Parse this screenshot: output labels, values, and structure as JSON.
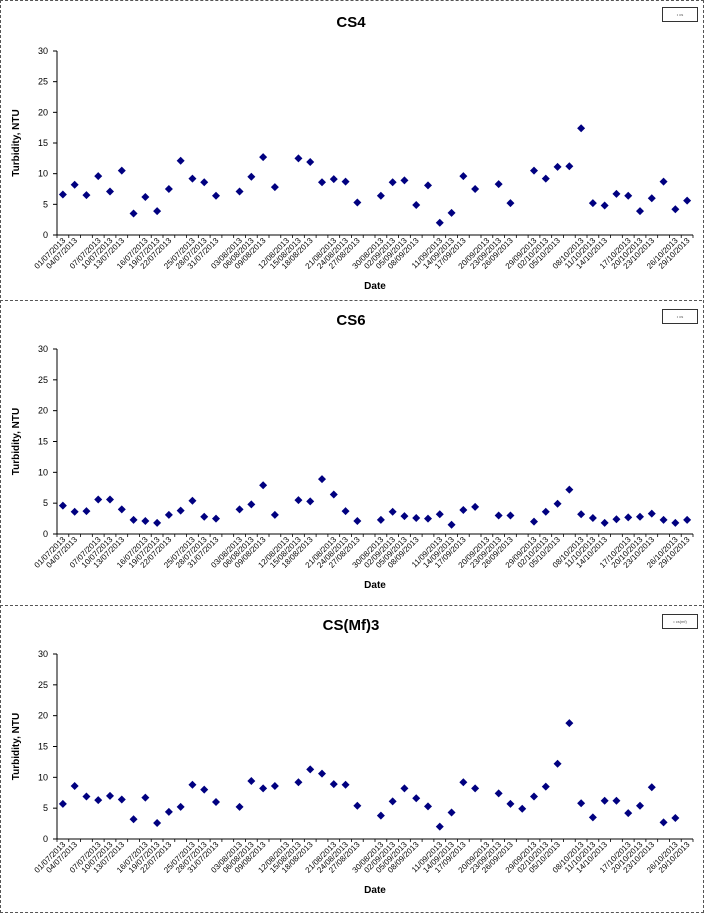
{
  "chart_data": [
    {
      "type": "scatter",
      "title": "CS4",
      "xlabel": "Date",
      "ylabel": "Turbidity, NTU",
      "ylim": [
        0,
        30
      ],
      "yticks": [
        0,
        5,
        10,
        15,
        20,
        25,
        30
      ],
      "grid": false,
      "legend": "top-right",
      "legend_text": "• cs",
      "marker_color": "#000080",
      "categories": [
        "01/07/2013",
        "04/07/2013",
        "07/07/2013",
        "10/07/2013",
        "13/07/2013",
        "16/07/2013",
        "19/07/2013",
        "22/07/2013",
        "25/07/2013",
        "28/07/2013",
        "31/07/2013",
        "03/08/2013",
        "06/08/2013",
        "09/08/2013",
        "12/08/2013",
        "15/08/2013",
        "18/08/2013",
        "21/08/2013",
        "24/08/2013",
        "27/08/2013",
        "30/08/2013",
        "02/09/2013",
        "05/09/2013",
        "08/09/2013",
        "11/09/2013",
        "14/09/2013",
        "17/09/2013",
        "20/09/2013",
        "23/09/2013",
        "26/09/2013",
        "29/09/2013",
        "02/10/2013",
        "05/10/2013",
        "08/10/2013",
        "11/10/2013",
        "14/10/2013",
        "17/10/2013",
        "20/10/2013",
        "23/10/2013",
        "26/10/2013",
        "29/10/2013"
      ],
      "points": [
        [
          0,
          6.6
        ],
        [
          1,
          8.2
        ],
        [
          2,
          6.5
        ],
        [
          3,
          9.6
        ],
        [
          4,
          7.1
        ],
        [
          5,
          10.5
        ],
        [
          6,
          3.5
        ],
        [
          7,
          6.2
        ],
        [
          8,
          3.9
        ],
        [
          9,
          7.5
        ],
        [
          10,
          12.1
        ],
        [
          11,
          9.2
        ],
        [
          12,
          8.6
        ],
        [
          13,
          6.4
        ],
        [
          15,
          7.1
        ],
        [
          16,
          9.5
        ],
        [
          17,
          12.7
        ],
        [
          18,
          7.8
        ],
        [
          20,
          12.5
        ],
        [
          21,
          11.9
        ],
        [
          22,
          8.6
        ],
        [
          23,
          9.1
        ],
        [
          24,
          8.7
        ],
        [
          25,
          5.3
        ],
        [
          27,
          6.4
        ],
        [
          28,
          8.6
        ],
        [
          29,
          8.9
        ],
        [
          30,
          4.9
        ],
        [
          31,
          8.1
        ],
        [
          32,
          2.0
        ],
        [
          33,
          3.6
        ],
        [
          34,
          9.6
        ],
        [
          35,
          7.5
        ],
        [
          37,
          8.3
        ],
        [
          38,
          5.2
        ],
        [
          40,
          10.5
        ],
        [
          41,
          9.2
        ],
        [
          42,
          11.1
        ],
        [
          43,
          11.2
        ],
        [
          44,
          17.4
        ],
        [
          45,
          5.2
        ],
        [
          46,
          4.8
        ],
        [
          47,
          6.7
        ],
        [
          48,
          6.4
        ],
        [
          49,
          3.9
        ],
        [
          50,
          6.0
        ],
        [
          51,
          8.7
        ],
        [
          52,
          4.2
        ],
        [
          53,
          5.6
        ]
      ]
    },
    {
      "type": "scatter",
      "title": "CS6",
      "xlabel": "Date",
      "ylabel": "Turbidity, NTU",
      "ylim": [
        0,
        30
      ],
      "yticks": [
        0,
        5,
        10,
        15,
        20,
        25,
        30
      ],
      "grid": false,
      "legend": "top-right",
      "legend_text": "• cs",
      "marker_color": "#000080",
      "categories": [
        "01/07/2013",
        "04/07/2013",
        "07/07/2013",
        "10/07/2013",
        "13/07/2013",
        "16/07/2013",
        "19/07/2013",
        "22/07/2013",
        "25/07/2013",
        "28/07/2013",
        "31/07/2013",
        "03/08/2013",
        "06/08/2013",
        "09/08/2013",
        "12/08/2013",
        "15/08/2013",
        "18/08/2013",
        "21/08/2013",
        "24/08/2013",
        "27/08/2013",
        "30/08/2013",
        "02/09/2013",
        "05/09/2013",
        "08/09/2013",
        "11/09/2013",
        "14/09/2013",
        "17/09/2013",
        "20/09/2013",
        "23/09/2013",
        "26/09/2013",
        "29/09/2013",
        "02/10/2013",
        "05/10/2013",
        "08/10/2013",
        "11/10/2013",
        "14/10/2013",
        "17/10/2013",
        "20/10/2013",
        "23/10/2013",
        "26/10/2013",
        "29/10/2013"
      ],
      "points": [
        [
          0,
          4.6
        ],
        [
          1,
          3.6
        ],
        [
          2,
          3.7
        ],
        [
          3,
          5.6
        ],
        [
          4,
          5.6
        ],
        [
          5,
          4.0
        ],
        [
          6,
          2.3
        ],
        [
          7,
          2.1
        ],
        [
          8,
          1.8
        ],
        [
          9,
          3.1
        ],
        [
          10,
          3.8
        ],
        [
          11,
          5.4
        ],
        [
          12,
          2.8
        ],
        [
          13,
          2.5
        ],
        [
          15,
          4.0
        ],
        [
          16,
          4.8
        ],
        [
          17,
          7.9
        ],
        [
          18,
          3.1
        ],
        [
          20,
          5.5
        ],
        [
          21,
          5.3
        ],
        [
          22,
          8.9
        ],
        [
          23,
          6.4
        ],
        [
          24,
          3.7
        ],
        [
          25,
          2.1
        ],
        [
          27,
          2.3
        ],
        [
          28,
          3.6
        ],
        [
          29,
          2.9
        ],
        [
          30,
          2.6
        ],
        [
          31,
          2.5
        ],
        [
          32,
          3.2
        ],
        [
          33,
          1.5
        ],
        [
          34,
          3.9
        ],
        [
          35,
          4.4
        ],
        [
          37,
          3.0
        ],
        [
          38,
          3.0
        ],
        [
          40,
          2.0
        ],
        [
          41,
          3.6
        ],
        [
          42,
          4.9
        ],
        [
          43,
          7.2
        ],
        [
          44,
          3.2
        ],
        [
          45,
          2.6
        ],
        [
          46,
          1.8
        ],
        [
          47,
          2.4
        ],
        [
          48,
          2.7
        ],
        [
          49,
          2.8
        ],
        [
          50,
          3.3
        ],
        [
          51,
          2.3
        ],
        [
          52,
          1.8
        ],
        [
          53,
          2.3
        ]
      ]
    },
    {
      "type": "scatter",
      "title": "CS(Mf)3",
      "xlabel": "Date",
      "ylabel": "Turbidity, NTU",
      "ylim": [
        0,
        30
      ],
      "yticks": [
        0,
        5,
        10,
        15,
        20,
        25,
        30
      ],
      "grid": false,
      "legend": "top-right",
      "legend_text": "• cs(mf)",
      "marker_color": "#000080",
      "categories": [
        "01/07/2013",
        "04/07/2013",
        "07/07/2013",
        "10/07/2013",
        "13/07/2013",
        "16/07/2013",
        "19/07/2013",
        "22/07/2013",
        "25/07/2013",
        "28/07/2013",
        "31/07/2013",
        "03/08/2013",
        "06/08/2013",
        "09/08/2013",
        "12/08/2013",
        "15/08/2013",
        "18/08/2013",
        "21/08/2013",
        "24/08/2013",
        "27/08/2013",
        "30/08/2013",
        "02/09/2013",
        "05/09/2013",
        "08/09/2013",
        "11/09/2013",
        "14/09/2013",
        "17/09/2013",
        "20/09/2013",
        "23/09/2013",
        "26/09/2013",
        "29/09/2013",
        "02/10/2013",
        "05/10/2013",
        "08/10/2013",
        "11/10/2013",
        "14/10/2013",
        "17/10/2013",
        "20/10/2013",
        "23/10/2013",
        "26/10/2013",
        "29/10/2013"
      ],
      "points": [
        [
          0,
          5.7
        ],
        [
          1,
          8.6
        ],
        [
          2,
          6.9
        ],
        [
          3,
          6.3
        ],
        [
          4,
          7.0
        ],
        [
          5,
          6.4
        ],
        [
          6,
          3.2
        ],
        [
          7,
          6.7
        ],
        [
          8,
          2.6
        ],
        [
          9,
          4.4
        ],
        [
          10,
          5.2
        ],
        [
          11,
          8.8
        ],
        [
          12,
          8.0
        ],
        [
          13,
          6.0
        ],
        [
          15,
          5.2
        ],
        [
          16,
          9.4
        ],
        [
          17,
          8.2
        ],
        [
          18,
          8.6
        ],
        [
          20,
          9.2
        ],
        [
          21,
          11.3
        ],
        [
          22,
          10.6
        ],
        [
          23,
          8.9
        ],
        [
          24,
          8.8
        ],
        [
          25,
          5.4
        ],
        [
          27,
          3.8
        ],
        [
          28,
          6.1
        ],
        [
          29,
          8.2
        ],
        [
          30,
          6.6
        ],
        [
          31,
          5.3
        ],
        [
          32,
          2.0
        ],
        [
          33,
          4.3
        ],
        [
          34,
          9.2
        ],
        [
          35,
          8.2
        ],
        [
          37,
          7.4
        ],
        [
          38,
          5.7
        ],
        [
          39,
          4.9
        ],
        [
          40,
          6.9
        ],
        [
          41,
          8.5
        ],
        [
          42,
          12.2
        ],
        [
          43,
          18.8
        ],
        [
          44,
          5.8
        ],
        [
          45,
          3.5
        ],
        [
          46,
          6.2
        ],
        [
          47,
          6.2
        ],
        [
          48,
          4.2
        ],
        [
          49,
          5.4
        ],
        [
          50,
          8.4
        ],
        [
          51,
          2.7
        ],
        [
          52,
          3.4
        ]
      ]
    }
  ]
}
